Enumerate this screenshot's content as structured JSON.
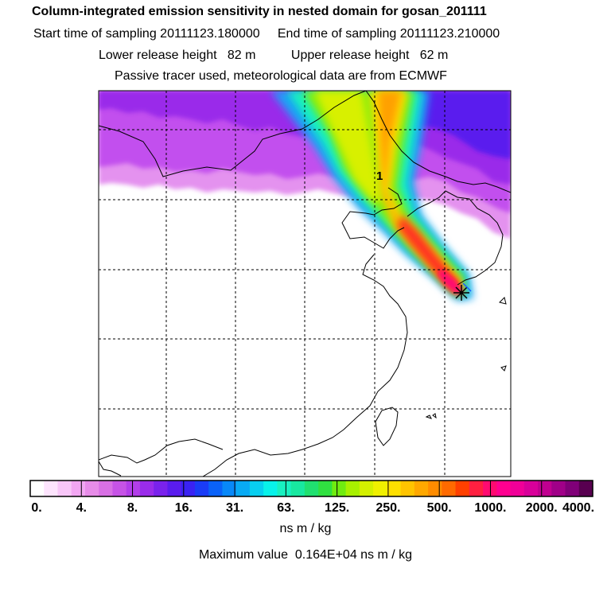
{
  "header": {
    "title": "Column-integrated emission sensitivity in nested domain for gosan_201111",
    "start_label": "Start time of sampling 20111123.180000",
    "end_label": "End time of sampling 20111123.210000",
    "lower_release": "Lower release height   82 m",
    "upper_release": "Upper release height   62 m",
    "tracer_note": "Passive tracer used, meteorological data are from ECMWF"
  },
  "map": {
    "label_1": "1",
    "site_marker": "asterisk-marker"
  },
  "colorbar": {
    "tick_labels": [
      "0.",
      "4.",
      "8.",
      "16.",
      "31.",
      "63.",
      "125.",
      "250.",
      "500.",
      "1000.",
      "2000.",
      "4000."
    ],
    "colors": [
      "#ffffff",
      "#fde4fd",
      "#f8c6f8",
      "#f2a6f2",
      "#e78ce8",
      "#d870e4",
      "#c653e6",
      "#b23ee9",
      "#9a2cea",
      "#7a22ec",
      "#5a1cee",
      "#3a22f3",
      "#1a3cf6",
      "#0a62f8",
      "#0888f8",
      "#08aaf4",
      "#08cff0",
      "#08f2ea",
      "#18f0c0",
      "#18e8a0",
      "#20e070",
      "#30e040",
      "#70ec10",
      "#a8f000",
      "#d4f000",
      "#f0f000",
      "#ffe000",
      "#ffc400",
      "#ffa800",
      "#ff8c00",
      "#ff6a00",
      "#ff4000",
      "#ff2040",
      "#ff0a70",
      "#ff0090",
      "#f00098",
      "#d8009a",
      "#c00090",
      "#a00088",
      "#800078",
      "#580050"
    ],
    "unit": "ns m / kg",
    "max_text": "Maximum value  0.164E+04 ns m / kg"
  }
}
